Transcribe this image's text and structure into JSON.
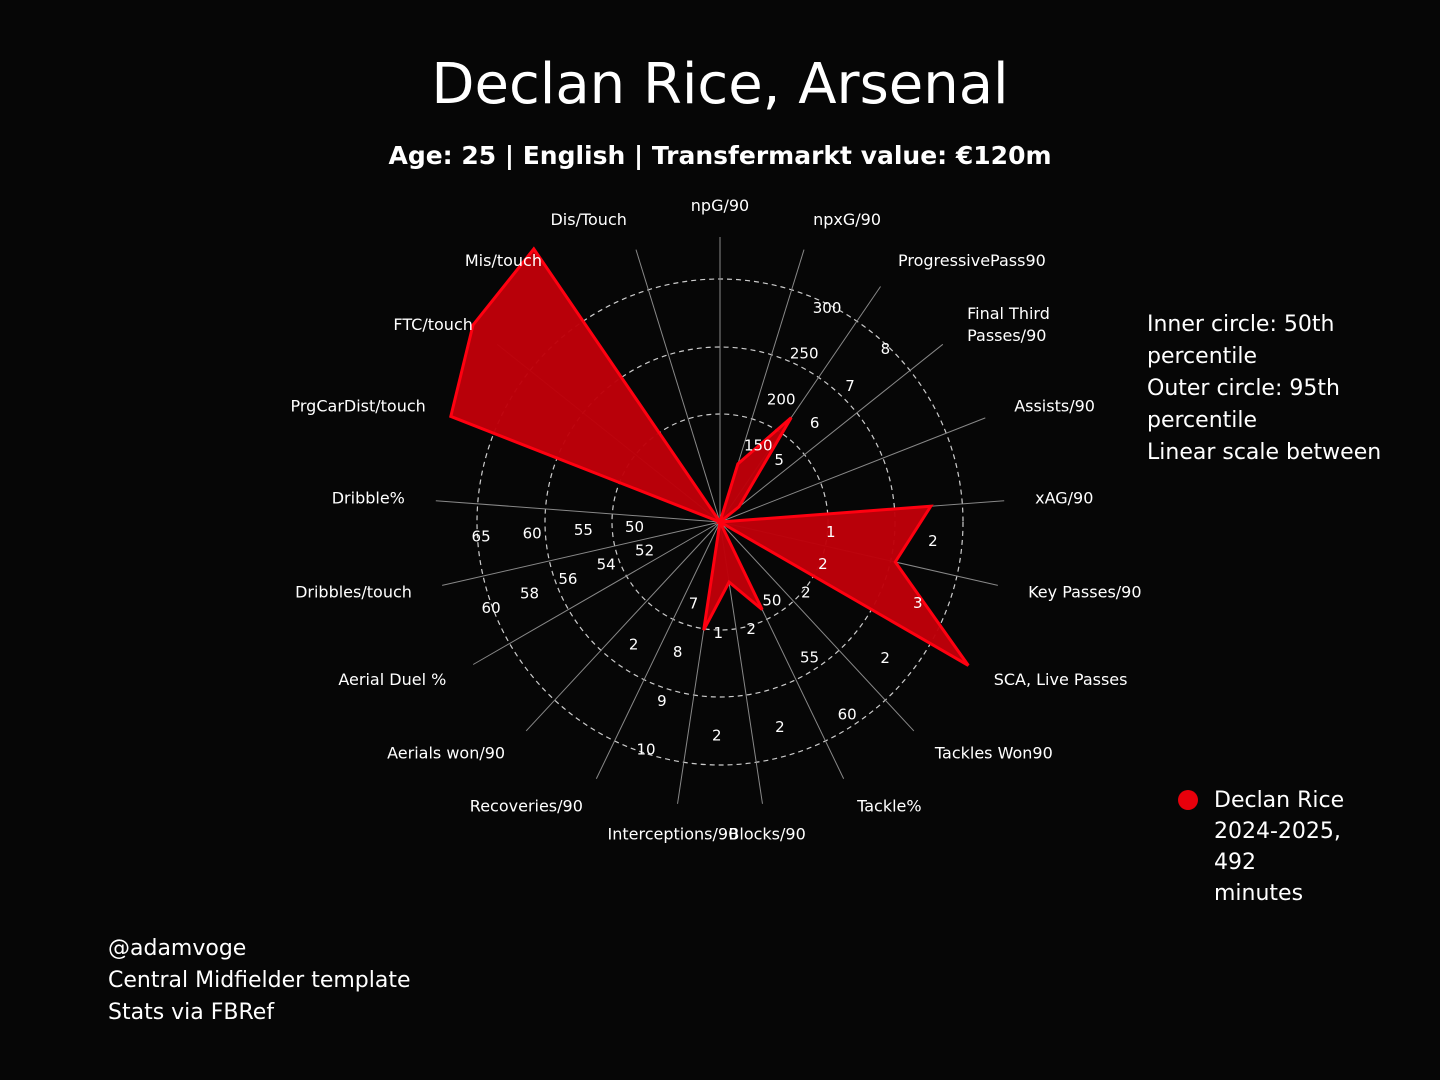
{
  "title": "Declan Rice, Arsenal",
  "subtitle": "Age: 25 | English | Transfermarkt value: €120m",
  "scale_note": [
    "Inner circle: 50th percentile",
    "Outer circle: 95th percentile",
    "Linear scale between"
  ],
  "legend": {
    "label_lines": [
      "Declan Rice",
      "2024-2025,",
      "492",
      "minutes"
    ],
    "color": "#e8000b"
  },
  "credits": [
    "@adamvoge",
    "Central Midfielder template",
    "Stats via FBRef"
  ],
  "colors": {
    "background": "#060606",
    "fill": "#be0009",
    "edge": "#ff0010",
    "grid": "#cccccc",
    "spoke": "#888888"
  },
  "chart_data": {
    "type": "radar",
    "series": [
      {
        "name": "Declan Rice 2024-2025, 492 minutes"
      }
    ],
    "rings": [
      "50th percentile",
      "95th percentile"
    ],
    "axes": [
      {
        "label": "npG/90",
        "value": 0.0,
        "ticks": []
      },
      {
        "label": "npxG/90",
        "value": 0.25,
        "ticks": []
      },
      {
        "label": "ProgressivePass90",
        "value": 0.52,
        "ticks": [
          "150",
          "200",
          "250",
          "300"
        ]
      },
      {
        "label": "Final Third\nPasses/90",
        "value": 0.1,
        "ticks": [
          "5",
          "6",
          "7",
          "8"
        ]
      },
      {
        "label": "Assists/90",
        "value": 0.0,
        "ticks": []
      },
      {
        "label": "xAG/90",
        "value": 0.87,
        "ticks": []
      },
      {
        "label": "Key Passes/90",
        "value": 0.74,
        "ticks": [
          "1",
          "2"
        ]
      },
      {
        "label": "SCA, Live Passes",
        "value": 1.18,
        "ticks": [
          "2",
          "3"
        ]
      },
      {
        "label": "Tackles Won90",
        "value": 0.0,
        "ticks": [
          "2",
          "2"
        ]
      },
      {
        "label": "Tackle%",
        "value": 0.4,
        "ticks": [
          "50",
          "55",
          "60"
        ]
      },
      {
        "label": "Blocks/90",
        "value": 0.25,
        "ticks": [
          "2",
          "2"
        ]
      },
      {
        "label": "Interceptions/90",
        "value": 0.45,
        "ticks": [
          "1",
          "2"
        ]
      },
      {
        "label": "Recoveries/90",
        "value": 0.0,
        "ticks": [
          "7",
          "8",
          "9",
          "10"
        ]
      },
      {
        "label": "Aerials won/90",
        "value": 0.0,
        "ticks": [
          "2"
        ]
      },
      {
        "label": "Aerial Duel %",
        "value": 0.0,
        "ticks": []
      },
      {
        "label": "Dribbles/touch",
        "value": 0.0,
        "ticks": [
          "52",
          "54",
          "56",
          "58",
          "60"
        ]
      },
      {
        "label": "Dribble%",
        "value": 0.0,
        "ticks": [
          "50",
          "55",
          "60",
          "65"
        ]
      },
      {
        "label": "PrgCarDist/touch",
        "value": 1.19,
        "ticks": []
      },
      {
        "label": "FTC/touch",
        "value": 1.3,
        "ticks": []
      },
      {
        "label": "Mis/touch",
        "value": 1.36,
        "ticks": []
      },
      {
        "label": "Dis/Touch",
        "value": 0.0,
        "ticks": []
      }
    ]
  }
}
